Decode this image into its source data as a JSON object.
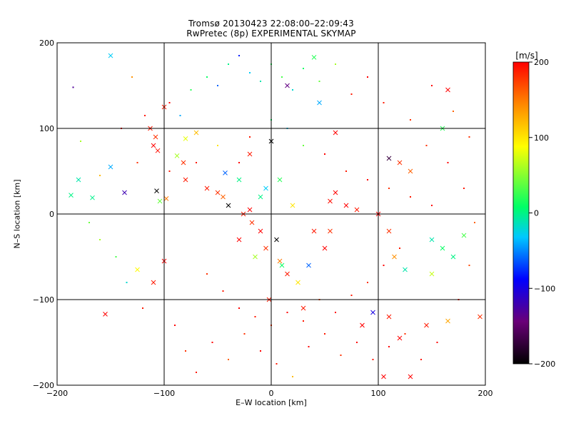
{
  "chart_data": {
    "type": "scatter",
    "title": "Tromsø 20130423 22:08:00–22:09:43",
    "subtitle": "RwPretec (8p) EXPERIMENTAL SKYMAP",
    "xlabel": "E–W location [km]",
    "ylabel": "N–S location [km]",
    "xlim": [
      -200,
      200
    ],
    "ylim": [
      -200,
      200
    ],
    "x_ticks": [
      -200,
      -100,
      0,
      100,
      200
    ],
    "y_ticks": [
      -200,
      -100,
      0,
      100,
      200
    ],
    "grid_lines_x": [
      -100,
      0,
      100
    ],
    "grid_lines_y": [
      -100,
      0,
      100
    ],
    "colorbar": {
      "label": "[m/s]",
      "range": [
        -200,
        200
      ],
      "ticks": [
        200,
        100,
        0,
        -100,
        -200
      ],
      "colormap": [
        "#000000",
        "#6a0078",
        "#0000ff",
        "#00c8ff",
        "#00ff66",
        "#ffff00",
        "#ff8800",
        "#ff0000"
      ]
    },
    "markers": {
      "small": "velocity estimate (point)",
      "cross": "velocity estimate (×)"
    },
    "series": [
      {
        "marker": "cross",
        "points": [
          [
            -167,
            19,
            -2
          ],
          [
            -187,
            22,
            0
          ],
          [
            -180,
            40,
            -10
          ],
          [
            -150,
            55,
            -40
          ],
          [
            -137,
            25,
            -120
          ],
          [
            -113,
            100,
            190
          ],
          [
            -110,
            80,
            200
          ],
          [
            -108,
            90,
            180
          ],
          [
            -106,
            74,
            195
          ],
          [
            -98,
            18,
            150
          ],
          [
            -107,
            27,
            -200
          ],
          [
            -104,
            15,
            40
          ],
          [
            -88,
            68,
            60
          ],
          [
            -82,
            60,
            180
          ],
          [
            -80,
            40,
            190
          ],
          [
            -60,
            30,
            190
          ],
          [
            -50,
            25,
            180
          ],
          [
            -45,
            20,
            160
          ],
          [
            -43,
            48,
            -60
          ],
          [
            -30,
            40,
            0
          ],
          [
            -40,
            10,
            -200
          ],
          [
            -20,
            5,
            200
          ],
          [
            -26,
            0,
            190
          ],
          [
            -18,
            -10,
            180
          ],
          [
            -10,
            -20,
            200
          ],
          [
            -5,
            -40,
            180
          ],
          [
            5,
            -30,
            -200
          ],
          [
            8,
            -55,
            150
          ],
          [
            15,
            -70,
            190
          ],
          [
            25,
            -80,
            100
          ],
          [
            50,
            -40,
            200
          ],
          [
            55,
            -20,
            180
          ],
          [
            70,
            10,
            200
          ],
          [
            80,
            5,
            190
          ],
          [
            100,
            0,
            200
          ],
          [
            110,
            -20,
            180
          ],
          [
            115,
            -50,
            140
          ],
          [
            125,
            -65,
            -10
          ],
          [
            150,
            -30,
            -10
          ],
          [
            160,
            -40,
            10
          ],
          [
            170,
            -50,
            0
          ],
          [
            180,
            -25,
            30
          ],
          [
            150,
            -70,
            70
          ],
          [
            110,
            -120,
            190
          ],
          [
            120,
            -145,
            200
          ],
          [
            145,
            -130,
            190
          ],
          [
            165,
            -125,
            130
          ],
          [
            195,
            -120,
            180
          ],
          [
            130,
            -190,
            200
          ],
          [
            105,
            -190,
            200
          ],
          [
            -155,
            -117,
            200
          ],
          [
            -125,
            -65,
            90
          ],
          [
            -100,
            -55,
            200
          ],
          [
            -110,
            -80,
            190
          ],
          [
            0,
            85,
            -200
          ],
          [
            15,
            150,
            -140
          ],
          [
            40,
            183,
            20
          ],
          [
            45,
            130,
            -40
          ],
          [
            60,
            95,
            200
          ],
          [
            110,
            65,
            -170
          ],
          [
            120,
            60,
            180
          ],
          [
            130,
            50,
            160
          ],
          [
            160,
            100,
            20
          ],
          [
            165,
            145,
            200
          ],
          [
            -150,
            185,
            -30
          ],
          [
            -100,
            125,
            190
          ],
          [
            -80,
            88,
            80
          ],
          [
            -70,
            95,
            120
          ],
          [
            -20,
            70,
            190
          ],
          [
            55,
            15,
            195
          ],
          [
            60,
            25,
            200
          ],
          [
            40,
            -20,
            190
          ],
          [
            -2,
            -100,
            190
          ],
          [
            30,
            -110,
            190
          ],
          [
            -5,
            30,
            -30
          ],
          [
            8,
            40,
            20
          ],
          [
            -10,
            20,
            0
          ],
          [
            20,
            10,
            100
          ],
          [
            -30,
            -30,
            200
          ],
          [
            10,
            -60,
            10
          ],
          [
            -15,
            -50,
            60
          ],
          [
            35,
            -60,
            -60
          ],
          [
            85,
            -130,
            200
          ],
          [
            95,
            -115,
            -100
          ]
        ]
      },
      {
        "marker": "point",
        "points": [
          [
            -185,
            148,
            -130
          ],
          [
            -178,
            85,
            60
          ],
          [
            -160,
            45,
            120
          ],
          [
            -130,
            160,
            140
          ],
          [
            -118,
            115,
            190
          ],
          [
            -95,
            130,
            200
          ],
          [
            -85,
            115,
            -40
          ],
          [
            -75,
            145,
            20
          ],
          [
            -60,
            160,
            10
          ],
          [
            -50,
            150,
            -60
          ],
          [
            -40,
            175,
            0
          ],
          [
            -30,
            185,
            -80
          ],
          [
            -20,
            165,
            -30
          ],
          [
            -10,
            155,
            -10
          ],
          [
            0,
            175,
            20
          ],
          [
            10,
            160,
            30
          ],
          [
            20,
            145,
            -20
          ],
          [
            30,
            170,
            10
          ],
          [
            45,
            155,
            40
          ],
          [
            60,
            175,
            60
          ],
          [
            75,
            140,
            190
          ],
          [
            90,
            160,
            200
          ],
          [
            105,
            130,
            190
          ],
          [
            130,
            110,
            180
          ],
          [
            150,
            150,
            200
          ],
          [
            170,
            120,
            160
          ],
          [
            185,
            90,
            180
          ],
          [
            -170,
            -10,
            40
          ],
          [
            -160,
            -30,
            60
          ],
          [
            -145,
            -50,
            30
          ],
          [
            -135,
            -80,
            -20
          ],
          [
            -120,
            -110,
            190
          ],
          [
            -90,
            -130,
            200
          ],
          [
            -80,
            -160,
            180
          ],
          [
            -70,
            -185,
            190
          ],
          [
            -55,
            -150,
            200
          ],
          [
            -40,
            -170,
            160
          ],
          [
            -25,
            -140,
            180
          ],
          [
            -10,
            -160,
            200
          ],
          [
            5,
            -175,
            190
          ],
          [
            20,
            -190,
            120
          ],
          [
            35,
            -155,
            200
          ],
          [
            50,
            -140,
            190
          ],
          [
            65,
            -165,
            180
          ],
          [
            80,
            -150,
            200
          ],
          [
            95,
            -170,
            190
          ],
          [
            110,
            -155,
            200
          ],
          [
            125,
            -140,
            180
          ],
          [
            140,
            -170,
            190
          ],
          [
            155,
            -150,
            200
          ],
          [
            175,
            -100,
            190
          ],
          [
            185,
            -60,
            170
          ],
          [
            190,
            -10,
            160
          ],
          [
            180,
            30,
            190
          ],
          [
            165,
            60,
            200
          ],
          [
            145,
            80,
            180
          ],
          [
            -140,
            100,
            200
          ],
          [
            -125,
            60,
            180
          ],
          [
            -95,
            50,
            190
          ],
          [
            -70,
            60,
            190
          ],
          [
            -50,
            80,
            100
          ],
          [
            -30,
            60,
            200
          ],
          [
            -20,
            90,
            190
          ],
          [
            0,
            110,
            10
          ],
          [
            15,
            100,
            -30
          ],
          [
            30,
            80,
            40
          ],
          [
            50,
            70,
            200
          ],
          [
            70,
            50,
            190
          ],
          [
            90,
            40,
            200
          ],
          [
            110,
            30,
            180
          ],
          [
            130,
            20,
            190
          ],
          [
            150,
            10,
            200
          ],
          [
            -60,
            -70,
            180
          ],
          [
            -45,
            -90,
            190
          ],
          [
            -30,
            -110,
            200
          ],
          [
            -15,
            -120,
            190
          ],
          [
            0,
            -130,
            180
          ],
          [
            15,
            -115,
            200
          ],
          [
            30,
            -125,
            190
          ],
          [
            45,
            -100,
            170
          ],
          [
            60,
            -115,
            200
          ],
          [
            75,
            -95,
            190
          ],
          [
            90,
            -80,
            180
          ],
          [
            105,
            -60,
            200
          ],
          [
            120,
            -40,
            190
          ]
        ]
      }
    ]
  }
}
